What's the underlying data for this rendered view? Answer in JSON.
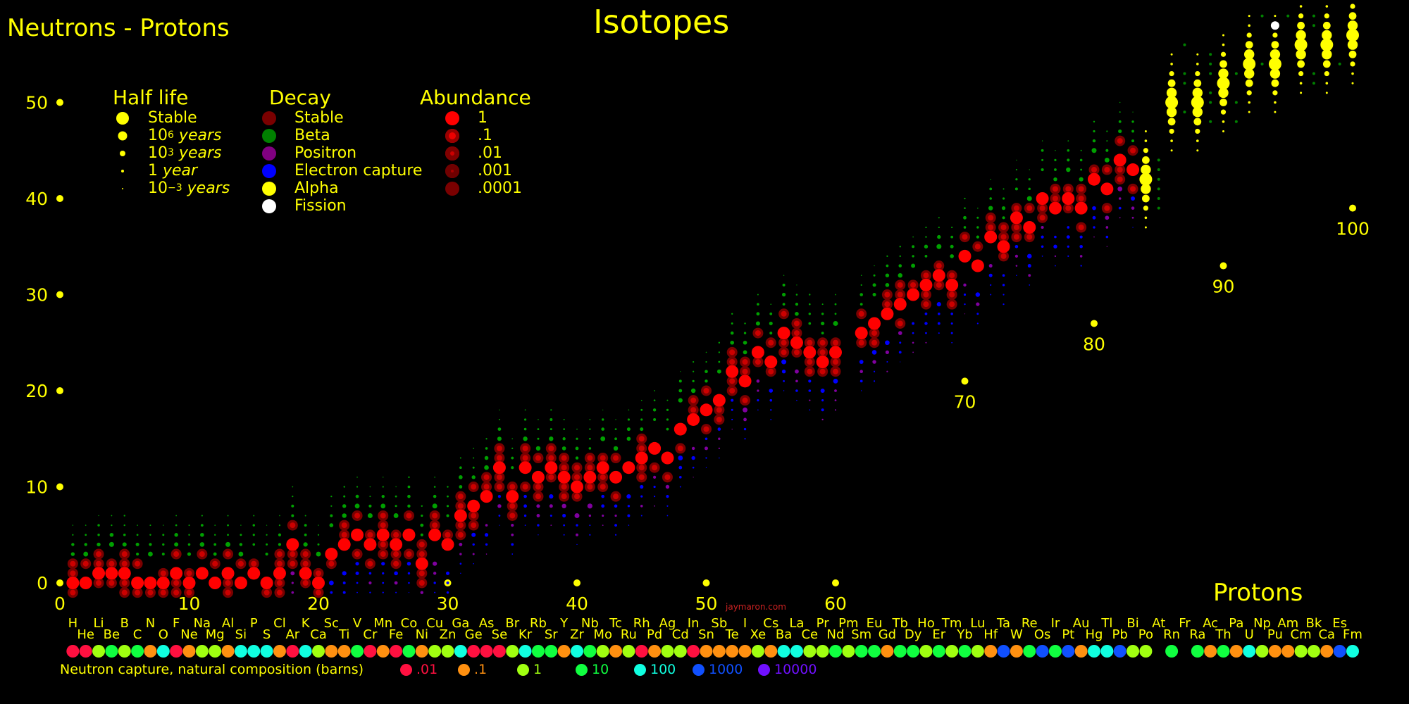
{
  "title": "Isotopes",
  "corner_title": "Neutrons - Protons",
  "x_axis_label": "Protons",
  "watermark": "jaymaron.com",
  "legends": {
    "half_life": {
      "title": "Half life",
      "items": [
        {
          "label": "Stable",
          "base": "",
          "exp": "",
          "unit": ""
        },
        {
          "label": "",
          "base": "10",
          "exp": "6",
          "unit": "years"
        },
        {
          "label": "",
          "base": "10",
          "exp": "3",
          "unit": "years"
        },
        {
          "label": "",
          "base": "1",
          "exp": "",
          "unit": "year"
        },
        {
          "label": "",
          "base": "10",
          "exp": "−3",
          "unit": "years"
        }
      ]
    },
    "decay": {
      "title": "Decay",
      "items": [
        {
          "label": "Stable",
          "color": "#7a0000"
        },
        {
          "label": "Beta",
          "color": "#008000"
        },
        {
          "label": "Positron",
          "color": "#800080"
        },
        {
          "label": "Electron capture",
          "color": "#0000ff"
        },
        {
          "label": "Alpha",
          "color": "#ffff00"
        },
        {
          "label": "Fission",
          "color": "#ffffff"
        }
      ]
    },
    "abundance": {
      "title": "Abundance",
      "items": [
        "1",
        ".1",
        ".01",
        ".001",
        ".0001"
      ]
    }
  },
  "neutron_capture": {
    "title": "Neutron capture, natural composition (barns)",
    "items": [
      {
        "label": ".01",
        "color": "#ff1040"
      },
      {
        "label": ".1",
        "color": "#ff9010"
      },
      {
        "label": "1",
        "color": "#a0ff10"
      },
      {
        "label": "10",
        "color": "#10ff40"
      },
      {
        "label": "100",
        "color": "#10ffe0"
      },
      {
        "label": "1000",
        "color": "#1050ff"
      },
      {
        "label": "10000",
        "color": "#7010ff"
      }
    ]
  },
  "chart_data": {
    "type": "scatter",
    "title": "Isotopes",
    "xlabel": "Protons",
    "ylabel": "Neutrons - Protons",
    "xlim": [
      0,
      100
    ],
    "ylim": [
      0,
      50
    ],
    "x_ticks": [
      0,
      10,
      20,
      30,
      40,
      50,
      60
    ],
    "y_ticks": [
      0,
      10,
      20,
      30,
      40,
      50
    ],
    "element_labels_row1": [
      "H",
      "Li",
      "B",
      "N",
      "F",
      "Na",
      "Al",
      "P",
      "Cl",
      "K",
      "Sc",
      "V",
      "Mn",
      "Co",
      "Cu",
      "Ga",
      "As",
      "Br",
      "Rb",
      "Y",
      "Nb",
      "Tc",
      "Rh",
      "Ag",
      "In",
      "Sb",
      "I",
      "Cs",
      "La",
      "Pr",
      "Pm",
      "Eu",
      "Tb",
      "Ho",
      "Tm",
      "Lu",
      "Ta",
      "Re",
      "Ir",
      "Au",
      "Tl",
      "Bi",
      "At",
      "Fr",
      "Ac",
      "Pa",
      "Np",
      "Am",
      "Bk",
      "Es"
    ],
    "element_labels_row2": [
      "He",
      "Be",
      "C",
      "O",
      "Ne",
      "Mg",
      "Si",
      "S",
      "Ar",
      "Ca",
      "Ti",
      "Cr",
      "Fe",
      "Ni",
      "Zn",
      "Ge",
      "Se",
      "Kr",
      "Sr",
      "Zr",
      "Mo",
      "Ru",
      "Pd",
      "Cd",
      "Sn",
      "Te",
      "Xe",
      "Ba",
      "Ce",
      "Nd",
      "Sm",
      "Gd",
      "Dy",
      "Er",
      "Yb",
      "Hf",
      "W",
      "Os",
      "Pt",
      "Hg",
      "Pb",
      "Po",
      "Rn",
      "Ra",
      "Th",
      "U",
      "Pu",
      "Cm",
      "Ca",
      "Fm"
    ],
    "axis_marker_labels": [
      {
        "z": 70,
        "n_minus_z": 21,
        "label": "70"
      },
      {
        "z": 80,
        "n_minus_z": 27,
        "label": "80"
      },
      {
        "z": 90,
        "n_minus_z": 33,
        "label": "90"
      },
      {
        "z": 100,
        "n_minus_z": 39,
        "label": "100"
      }
    ],
    "stable_band": [
      [
        1,
        0
      ],
      [
        2,
        0
      ],
      [
        3,
        1
      ],
      [
        4,
        1
      ],
      [
        5,
        1
      ],
      [
        6,
        0
      ],
      [
        7,
        0
      ],
      [
        8,
        0
      ],
      [
        9,
        1
      ],
      [
        10,
        0
      ],
      [
        11,
        1
      ],
      [
        12,
        0
      ],
      [
        13,
        1
      ],
      [
        14,
        0
      ],
      [
        15,
        1
      ],
      [
        16,
        0
      ],
      [
        17,
        1
      ],
      [
        18,
        4
      ],
      [
        19,
        1
      ],
      [
        20,
        0
      ],
      [
        21,
        3
      ],
      [
        22,
        4
      ],
      [
        23,
        5
      ],
      [
        24,
        4
      ],
      [
        25,
        5
      ],
      [
        26,
        4
      ],
      [
        27,
        5
      ],
      [
        28,
        2
      ],
      [
        29,
        5
      ],
      [
        30,
        4
      ],
      [
        31,
        7
      ],
      [
        32,
        8
      ],
      [
        33,
        9
      ],
      [
        34,
        12
      ],
      [
        35,
        9
      ],
      [
        36,
        12
      ],
      [
        37,
        11
      ],
      [
        38,
        12
      ],
      [
        39,
        11
      ],
      [
        40,
        10
      ],
      [
        41,
        11
      ],
      [
        42,
        12
      ],
      [
        43,
        11
      ],
      [
        44,
        12
      ],
      [
        45,
        13
      ],
      [
        46,
        14
      ],
      [
        47,
        13
      ],
      [
        48,
        16
      ],
      [
        49,
        17
      ],
      [
        50,
        18
      ],
      [
        51,
        19
      ],
      [
        52,
        22
      ],
      [
        53,
        21
      ],
      [
        54,
        24
      ],
      [
        55,
        23
      ],
      [
        56,
        26
      ],
      [
        57,
        25
      ],
      [
        58,
        24
      ],
      [
        59,
        23
      ],
      [
        60,
        24
      ],
      [
        62,
        26
      ],
      [
        63,
        27
      ],
      [
        64,
        28
      ],
      [
        65,
        29
      ],
      [
        66,
        30
      ],
      [
        67,
        31
      ],
      [
        68,
        32
      ],
      [
        69,
        31
      ],
      [
        70,
        34
      ],
      [
        71,
        33
      ],
      [
        72,
        36
      ],
      [
        73,
        35
      ],
      [
        74,
        38
      ],
      [
        75,
        37
      ],
      [
        76,
        40
      ],
      [
        77,
        39
      ],
      [
        78,
        40
      ],
      [
        79,
        39
      ],
      [
        80,
        42
      ],
      [
        81,
        41
      ],
      [
        82,
        44
      ],
      [
        83,
        43
      ]
    ],
    "heavy_points": [
      [
        84,
        42
      ],
      [
        86,
        50
      ],
      [
        88,
        50
      ],
      [
        90,
        52
      ],
      [
        92,
        54
      ],
      [
        94,
        54
      ],
      [
        96,
        56
      ],
      [
        98,
        56
      ],
      [
        100,
        57
      ]
    ]
  }
}
